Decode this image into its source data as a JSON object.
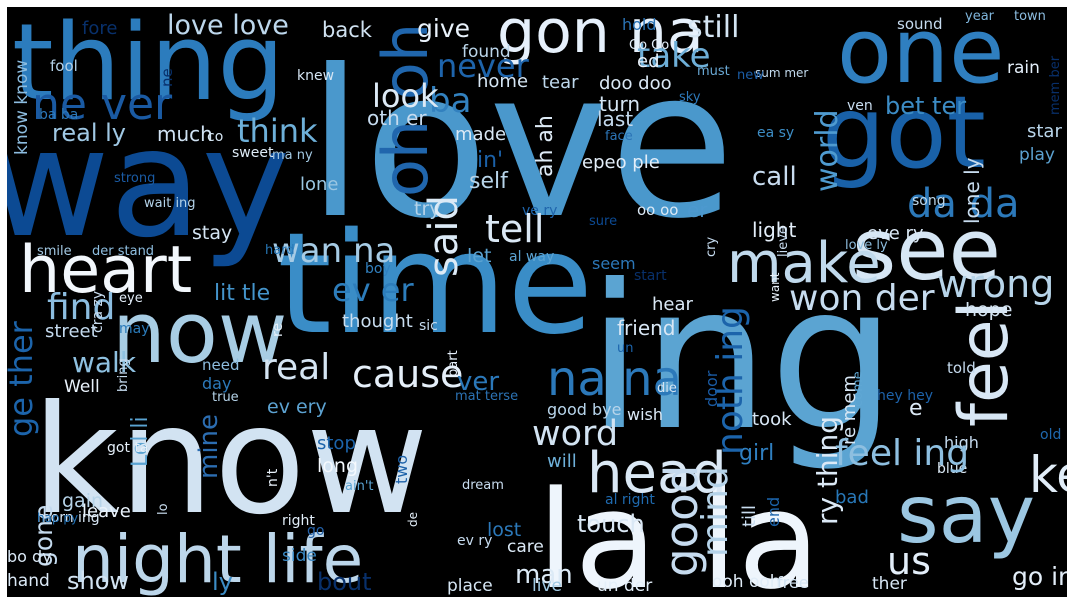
{
  "title": "",
  "words": [
    {
      "text": "love",
      "color": "#4a98cc"
    },
    {
      "text": "way",
      "color": "#0c4a93"
    },
    {
      "text": "thing",
      "color": "#2c7cbd"
    },
    {
      "text": "one",
      "color": "#2f7fc0"
    },
    {
      "text": "got",
      "color": "#1961a8"
    },
    {
      "text": "gon na",
      "color": "#e6f0fb"
    },
    {
      "text": "time",
      "color": "#3a8dc7"
    },
    {
      "text": "see",
      "color": "#d6e6f4"
    },
    {
      "text": "heart",
      "color": "#f2f7fc"
    },
    {
      "text": "now",
      "color": "#a8cde4"
    },
    {
      "text": "make",
      "color": "#c0d9ec"
    },
    {
      "text": "ing",
      "color": "#5ba4d2"
    },
    {
      "text": "know",
      "color": "#d2e3f2"
    },
    {
      "text": "feel",
      "color": "#d8e7f5"
    },
    {
      "text": "say",
      "color": "#9cc7e2"
    },
    {
      "text": "la la",
      "color": "#eef5fc"
    },
    {
      "text": "night life",
      "color": "#bcd6ea"
    },
    {
      "text": "ne ver",
      "color": "#1a5aa3"
    },
    {
      "text": "oh oh",
      "color": "#2066ad"
    },
    {
      "text": "never",
      "color": "#1e64ab"
    },
    {
      "text": "take",
      "color": "#6eafd8"
    },
    {
      "text": "still",
      "color": "#d4e5f3"
    },
    {
      "text": "love love",
      "color": "#bdd7ec"
    },
    {
      "text": "give",
      "color": "#e9f2fb"
    },
    {
      "text": "back",
      "color": "#d0e2f1"
    },
    {
      "text": "fore",
      "color": "#08306b"
    },
    {
      "text": "hold",
      "color": "#2a73b5"
    },
    {
      "text": "sound",
      "color": "#c6dbef"
    },
    {
      "text": "year",
      "color": "#7fb5db"
    },
    {
      "text": "town",
      "color": "#8dbde0"
    },
    {
      "text": "know know",
      "color": "#8dbde0"
    },
    {
      "text": "fool",
      "color": "#b3d1e8"
    },
    {
      "text": "ne",
      "color": "#08306b"
    },
    {
      "text": "knew",
      "color": "#d5e5f3"
    },
    {
      "text": "Go Go",
      "color": "#e3eef9"
    },
    {
      "text": "found",
      "color": "#bcd6ea"
    },
    {
      "text": "ed",
      "color": "#e8f1fa"
    },
    {
      "text": "must",
      "color": "#6aa9d5"
    },
    {
      "text": "sum mer",
      "color": "#c3daed"
    },
    {
      "text": "new",
      "color": "#1b5da6"
    },
    {
      "text": "rain",
      "color": "#e3eef9"
    },
    {
      "text": "ba",
      "color": "#3281bf"
    },
    {
      "text": "home",
      "color": "#d6e6f4"
    },
    {
      "text": "tear",
      "color": "#bed8ec"
    },
    {
      "text": "doo doo",
      "color": "#dae8f5"
    },
    {
      "text": "turn",
      "color": "#d5e5f3"
    },
    {
      "text": "sky",
      "color": "#2d79ba"
    },
    {
      "text": "ba ba",
      "color": "#2c79ba"
    },
    {
      "text": "look",
      "color": "#ddeaf6"
    },
    {
      "text": "ven",
      "color": "#c9ddf0"
    },
    {
      "text": "bet ter",
      "color": "#3c8cc5"
    },
    {
      "text": "mem ber",
      "color": "#082f6a"
    },
    {
      "text": "real ly",
      "color": "#a0c8e4"
    },
    {
      "text": "much",
      "color": "#cfe1f2"
    },
    {
      "text": "co",
      "color": "#d6e6f4"
    },
    {
      "text": "think",
      "color": "#6eb0d9"
    },
    {
      "text": "oth er",
      "color": "#c6dbef"
    },
    {
      "text": "made",
      "color": "#dae8f5"
    },
    {
      "text": "last",
      "color": "#c4daee"
    },
    {
      "text": "face",
      "color": "#2c75b7"
    },
    {
      "text": "ea sy",
      "color": "#3d8dc5"
    },
    {
      "text": "star",
      "color": "#b9d5ea"
    },
    {
      "text": "play",
      "color": "#5ca2d1"
    },
    {
      "text": "sweet",
      "color": "#dfecf7"
    },
    {
      "text": "ma ny",
      "color": "#a3c9e3"
    },
    {
      "text": "strong",
      "color": "#1a5ba4"
    },
    {
      "text": "in'",
      "color": "#1b61a8"
    },
    {
      "text": "self",
      "color": "#b7d4e9"
    },
    {
      "text": "ah ah",
      "color": "#ddeaf6"
    },
    {
      "text": "epeo ple",
      "color": "#e3eef9"
    },
    {
      "text": "world",
      "color": "#4f9bd0"
    },
    {
      "text": "call",
      "color": "#c8dcef"
    },
    {
      "text": "lone",
      "color": "#9ac6e2"
    },
    {
      "text": "wait ing",
      "color": "#b4d3e9"
    },
    {
      "text": "try",
      "color": "#b4d3e9"
    },
    {
      "text": "ve ry",
      "color": "#1f65ac"
    },
    {
      "text": "oo oo",
      "color": "#dbe9f6"
    },
    {
      "text": "er",
      "color": "#4d99cf"
    },
    {
      "text": "da da",
      "color": "#2c79ba"
    },
    {
      "text": "lone ly",
      "color": "#c7dcef"
    },
    {
      "text": "song",
      "color": "#bcd7eb"
    },
    {
      "text": "wan na",
      "color": "#a6cbe5"
    },
    {
      "text": "stay",
      "color": "#d5e5f3"
    },
    {
      "text": "sure",
      "color": "#0c4a93"
    },
    {
      "text": "light",
      "color": "#e3eef9"
    },
    {
      "text": "eve ry",
      "color": "#dae8f5"
    },
    {
      "text": "love ly",
      "color": "#8fbfe0"
    },
    {
      "text": "smile",
      "color": "#a3c9e3"
    },
    {
      "text": "der stand",
      "color": "#8ebee0"
    },
    {
      "text": "hard",
      "color": "#2878b8"
    },
    {
      "text": "boy",
      "color": "#3181c0"
    },
    {
      "text": "said",
      "color": "#dceaf6"
    },
    {
      "text": "tell",
      "color": "#dae8f5"
    },
    {
      "text": "let",
      "color": "#5aa3d2"
    },
    {
      "text": "al way",
      "color": "#5ba3d2"
    },
    {
      "text": "cry",
      "color": "#c5dbef"
    },
    {
      "text": "seem",
      "color": "#2c77b8"
    },
    {
      "text": "start",
      "color": "#08306b"
    },
    {
      "text": "won der",
      "color": "#c7dcef"
    },
    {
      "text": "wrong",
      "color": "#b7d4e9"
    },
    {
      "text": "lit tle",
      "color": "#4494cb"
    },
    {
      "text": "ev er",
      "color": "#2d7dbb"
    },
    {
      "text": "find",
      "color": "#8cbde0"
    },
    {
      "text": "eye",
      "color": "#e3eef9"
    },
    {
      "text": "re",
      "color": "#e4eff9"
    },
    {
      "text": "street",
      "color": "#c4daee"
    },
    {
      "text": "cra zy",
      "color": "#c8dcef"
    },
    {
      "text": "may",
      "color": "#2a7ab9"
    },
    {
      "text": "thought",
      "color": "#cadef0"
    },
    {
      "text": "sic",
      "color": "#c6dbef"
    },
    {
      "text": "hear",
      "color": "#dae8f5"
    },
    {
      "text": "hope",
      "color": "#d4e4f2"
    },
    {
      "text": "lieve",
      "color": "#c9ddf0"
    },
    {
      "text": "want",
      "color": "#e8f1fa"
    },
    {
      "text": "friend",
      "color": "#d8e7f5"
    },
    {
      "text": "un",
      "color": "#1c64ab"
    },
    {
      "text": "ge ther",
      "color": "#1c64ab"
    },
    {
      "text": "walk",
      "color": "#8ec0e0"
    },
    {
      "text": "real",
      "color": "#d5e5f3"
    },
    {
      "text": "cause",
      "color": "#e5eff9"
    },
    {
      "text": "na na",
      "color": "#2c79ba"
    },
    {
      "text": "ver",
      "color": "#2b78b9"
    },
    {
      "text": "need",
      "color": "#8ebee0"
    },
    {
      "text": "day",
      "color": "#2c79ba"
    },
    {
      "text": "Well",
      "color": "#e9f2fb"
    },
    {
      "text": "bring",
      "color": "#c6dbef"
    },
    {
      "text": "true",
      "color": "#b5d3e9"
    },
    {
      "text": "part",
      "color": "#e6f0fb"
    },
    {
      "text": "mat terse",
      "color": "#2c73b5"
    },
    {
      "text": "told",
      "color": "#c6dbef"
    },
    {
      "text": "noth ing",
      "color": "#1c64ab"
    },
    {
      "text": "door",
      "color": "#1a5ba4"
    },
    {
      "text": "die",
      "color": "#d2e3f2"
    },
    {
      "text": "come",
      "color": "#5fa7d4"
    },
    {
      "text": "hey hey",
      "color": "#1d62a9"
    },
    {
      "text": "e",
      "color": "#dbe9f6"
    },
    {
      "text": "ev ery",
      "color": "#5da3d2"
    },
    {
      "text": "good bye",
      "color": "#b8d5eb"
    },
    {
      "text": "wish",
      "color": "#dbe9f6"
    },
    {
      "text": "took",
      "color": "#d8e7f5"
    },
    {
      "text": "re mem",
      "color": "#d6e6f4"
    },
    {
      "text": "old",
      "color": "#1f68ae"
    },
    {
      "text": "word",
      "color": "#d2e3f2"
    },
    {
      "text": "mine",
      "color": "#2c6db1"
    },
    {
      "text": "Lol li",
      "color": "#5aa3d2"
    },
    {
      "text": "got ta",
      "color": "#e4eff9"
    },
    {
      "text": "stop",
      "color": "#1c64ab"
    },
    {
      "text": "long",
      "color": "#f4f9fe"
    },
    {
      "text": "girl",
      "color": "#2f7fc0"
    },
    {
      "text": "keep",
      "color": "#e1edf8"
    },
    {
      "text": "high",
      "color": "#c6dbef"
    },
    {
      "text": "blue",
      "color": "#dceaf6"
    },
    {
      "text": "head",
      "color": "#dae8f5"
    },
    {
      "text": "gone",
      "color": "#c4daee"
    },
    {
      "text": "n't",
      "color": "#e8f1fa"
    },
    {
      "text": "ain't",
      "color": "#5aa3d2"
    },
    {
      "text": "two",
      "color": "#1d62a9"
    },
    {
      "text": "will",
      "color": "#6eb0d9"
    },
    {
      "text": "dream",
      "color": "#c9ddf0"
    },
    {
      "text": "al right",
      "color": "#1f6aaf"
    },
    {
      "text": "bad",
      "color": "#2878b8"
    },
    {
      "text": "gain",
      "color": "#b7d4e9"
    },
    {
      "text": "lo",
      "color": "#cadef0"
    },
    {
      "text": "morn ing",
      "color": "#d8e7f5"
    },
    {
      "text": "leave",
      "color": "#e9f2fb"
    },
    {
      "text": "de",
      "color": "#e3eef9"
    },
    {
      "text": "till",
      "color": "#c9ddf0"
    },
    {
      "text": "end",
      "color": "#1c64ab"
    },
    {
      "text": "ry thing",
      "color": "#dbe9f6"
    },
    {
      "text": "feel ing",
      "color": "#8ebfe0"
    },
    {
      "text": "hap py",
      "color": "#2271b4"
    },
    {
      "text": "right",
      "color": "#e1edf8"
    },
    {
      "text": "go",
      "color": "#2361a9"
    },
    {
      "text": "lost",
      "color": "#2c79ba"
    },
    {
      "text": "touch",
      "color": "#dae8f5"
    },
    {
      "text": "ev ry",
      "color": "#c6dbef"
    },
    {
      "text": "good",
      "color": "#c6dbef"
    },
    {
      "text": "mind",
      "color": "#b5d3e9"
    },
    {
      "text": "us",
      "color": "#e3eef9"
    },
    {
      "text": "care",
      "color": "#dae8f5"
    },
    {
      "text": "side",
      "color": "#3a88c2"
    },
    {
      "text": "man",
      "color": "#dceaf6"
    },
    {
      "text": "bo dy",
      "color": "#dae8f5"
    },
    {
      "text": "hand",
      "color": "#dbe9f6"
    },
    {
      "text": "show",
      "color": "#d2e3f2"
    },
    {
      "text": "ly",
      "color": "#3c8cc5"
    },
    {
      "text": "bout",
      "color": "#08306b"
    },
    {
      "text": "place",
      "color": "#d6e6f4"
    },
    {
      "text": "live",
      "color": "#a0c9e3"
    },
    {
      "text": "un der",
      "color": "#e4eff9"
    },
    {
      "text": "ooh ooh",
      "color": "#e1edf8"
    },
    {
      "text": "free",
      "color": "#d2e3f2"
    },
    {
      "text": "ther",
      "color": "#d7e6f4"
    },
    {
      "text": "go ing",
      "color": "#e3eef9"
    },
    {
      "text": "round",
      "color": "#d4e4f2"
    },
    {
      "text": "ma ma",
      "color": "#e1edf8"
    },
    {
      "text": "yeah yeah",
      "color": "#2b74b6"
    },
    {
      "text": "oh",
      "color": "#e3eef9"
    }
  ]
}
